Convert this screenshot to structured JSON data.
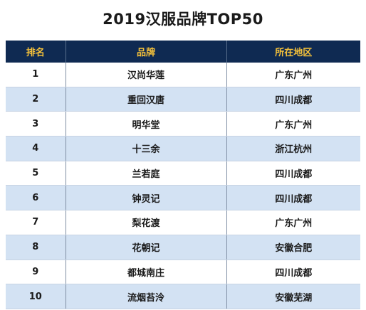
{
  "title": "2019汉服品牌TOP50",
  "table": {
    "headers": [
      "排名",
      "品牌",
      "所在地区"
    ],
    "rows": [
      {
        "rank": "1",
        "brand": "汉尚华莲",
        "region": "广东广州"
      },
      {
        "rank": "2",
        "brand": "重回汉唐",
        "region": "四川成都"
      },
      {
        "rank": "3",
        "brand": "明华堂",
        "region": "广东广州"
      },
      {
        "rank": "4",
        "brand": "十三余",
        "region": "浙江杭州"
      },
      {
        "rank": "5",
        "brand": "兰若庭",
        "region": "四川成都"
      },
      {
        "rank": "6",
        "brand": "钟灵记",
        "region": "四川成都"
      },
      {
        "rank": "7",
        "brand": "梨花渡",
        "region": "广东广州"
      },
      {
        "rank": "8",
        "brand": "花朝记",
        "region": "安徽合肥"
      },
      {
        "rank": "9",
        "brand": "都城南庄",
        "region": "四川成都"
      },
      {
        "rank": "10",
        "brand": "流烟苔泠",
        "region": "安徽芜湖"
      }
    ]
  },
  "colors": {
    "header_bg": "#0f2a52",
    "header_text": "#f6c23a",
    "alt_row": "#d3e2f3"
  }
}
